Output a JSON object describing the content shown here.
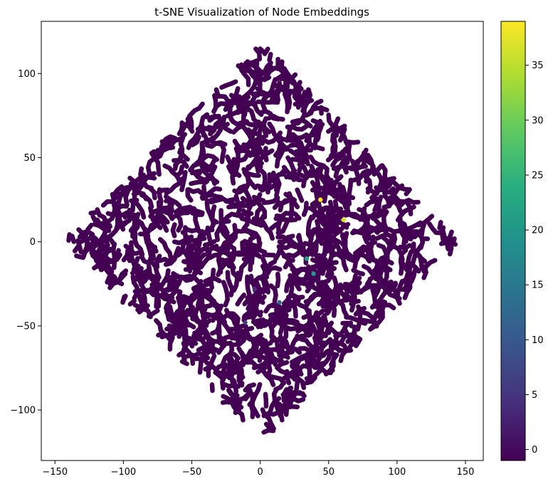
{
  "chart_data": {
    "type": "scatter",
    "title": "t-SNE Visualization of Node Embeddings",
    "xlabel": "",
    "ylabel": "",
    "xlim": [
      -160,
      163
    ],
    "ylim": [
      -130,
      131
    ],
    "xticks": [
      -150,
      -100,
      -50,
      0,
      50,
      100,
      150
    ],
    "yticks": [
      -100,
      -50,
      0,
      50,
      100
    ],
    "grid": false,
    "colormap": "viridis",
    "colorbar": {
      "range": [
        -1,
        39
      ],
      "ticks": [
        0,
        5,
        10,
        15,
        20,
        25,
        30,
        35
      ]
    },
    "background_cluster": {
      "color_value": 0,
      "color": "#440154",
      "shape": "diamond",
      "x_range": [
        -145,
        148
      ],
      "y_range": [
        -119,
        119
      ]
    },
    "highlighted_points": [
      {
        "x": 44,
        "y": 25,
        "value": 39
      },
      {
        "x": 61,
        "y": 13,
        "value": 37
      },
      {
        "x": 34,
        "y": -10,
        "value": 22
      },
      {
        "x": 39,
        "y": -19,
        "value": 20
      },
      {
        "x": 14,
        "y": -36,
        "value": 12
      },
      {
        "x": -11,
        "y": -48,
        "value": 6
      },
      {
        "x": -4,
        "y": -28,
        "value": 4
      }
    ]
  }
}
